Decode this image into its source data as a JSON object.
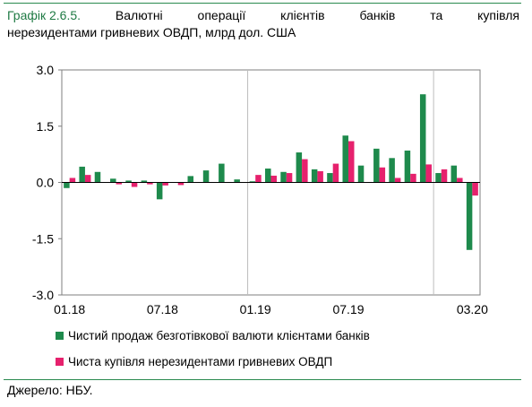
{
  "title": {
    "label": "Графік 2.6.5.",
    "words_line1": [
      "Валютні",
      "операції",
      "клієнтів",
      "банків",
      "та",
      "купівля"
    ],
    "line2": "нерезидентами гривневих ОВДП, млрд дол. США"
  },
  "colors": {
    "series1": "#1e8a4c",
    "series2": "#e6216d",
    "axis": "#000000",
    "grid": "#bdbdbd"
  },
  "chart_data": {
    "type": "bar",
    "ylim": [
      -3.0,
      3.0
    ],
    "yticks": [
      "3.0",
      "1.5",
      "0.0",
      "-1.5",
      "-3.0"
    ],
    "ytick_values": [
      3.0,
      1.5,
      0.0,
      -1.5,
      -3.0
    ],
    "xtick_labels": [
      "01.18",
      "07.18",
      "01.19",
      "07.19",
      "03.20"
    ],
    "xtick_indices": [
      0,
      6,
      12,
      18,
      26
    ],
    "categories": [
      "01.18",
      "02.18",
      "03.18",
      "04.18",
      "05.18",
      "06.18",
      "07.18",
      "08.18",
      "09.18",
      "10.18",
      "11.18",
      "12.18",
      "01.19",
      "02.19",
      "03.19",
      "04.19",
      "05.19",
      "06.19",
      "07.19",
      "08.19",
      "09.19",
      "10.19",
      "11.19",
      "12.19",
      "01.20",
      "02.20",
      "03.20"
    ],
    "series": [
      {
        "name": "Чистий продаж безготівкової валюти клієнтами банків",
        "values": [
          -0.15,
          0.42,
          0.28,
          0.1,
          0.05,
          0.05,
          -0.45,
          0.01,
          0.17,
          0.32,
          0.5,
          0.08,
          0.03,
          0.37,
          0.28,
          0.8,
          0.35,
          0.25,
          1.25,
          0.45,
          0.9,
          0.65,
          0.85,
          2.35,
          0.25,
          0.45,
          -1.8
        ]
      },
      {
        "name": "Чиста купівля нерезидентами гривневих ОВДП",
        "values": [
          0.12,
          0.2,
          0.0,
          -0.05,
          -0.12,
          -0.05,
          -0.08,
          -0.07,
          0.0,
          0.0,
          0.0,
          0.0,
          0.2,
          0.18,
          0.25,
          0.62,
          0.3,
          0.5,
          1.1,
          0.0,
          0.4,
          0.12,
          0.23,
          0.48,
          0.35,
          0.12,
          -0.35
        ]
      }
    ],
    "gridlines_x_after_index": [
      11,
      23
    ],
    "legend_position": "bottom"
  },
  "legend": [
    {
      "label": "Чистий продаж безготівкової валюти клієнтами банків"
    },
    {
      "label": "Чиста купівля нерезидентами гривневих ОВДП"
    }
  ],
  "source": "Джерело: НБУ."
}
